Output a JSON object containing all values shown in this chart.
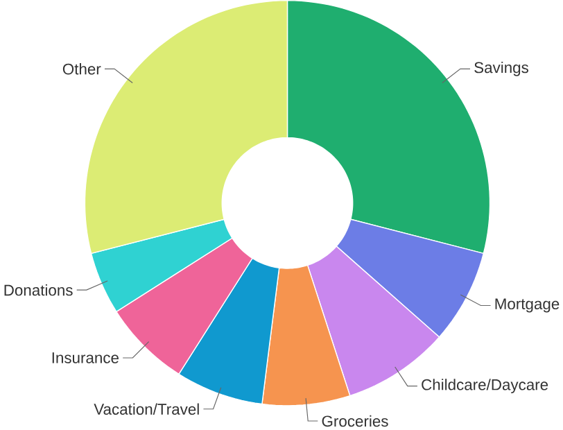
{
  "chart_data": {
    "type": "donut",
    "categories": [
      "Savings",
      "Mortgage",
      "Childcare/Daycare",
      "Groceries",
      "Vacation/Travel",
      "Insurance",
      "Donations",
      "Other"
    ],
    "values": [
      29,
      7.5,
      8.5,
      7,
      7,
      7,
      5,
      29
    ],
    "colors": [
      "#1fae6f",
      "#6c7de6",
      "#c987ee",
      "#f6944f",
      "#1099cf",
      "#ef6499",
      "#2fd2d2",
      "#dcec74"
    ]
  }
}
